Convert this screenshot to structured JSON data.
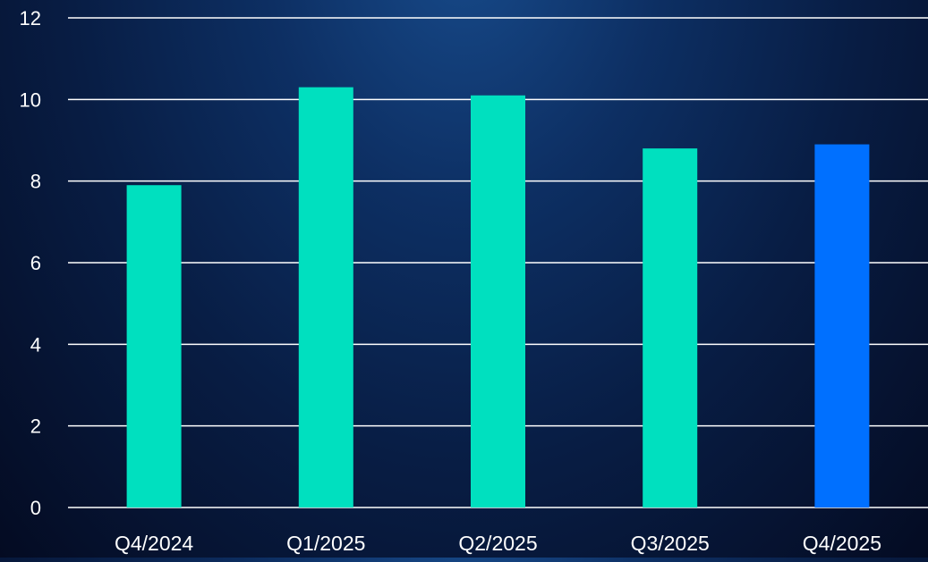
{
  "chart_data": {
    "type": "bar",
    "title": "",
    "xlabel": "",
    "ylabel": "",
    "categories": [
      "Q4/2024",
      "Q1/2025",
      "Q2/2025",
      "Q3/2025",
      "Q4/2025"
    ],
    "values": [
      7.9,
      10.3,
      10.1,
      8.8,
      8.9
    ],
    "ylim": [
      0,
      12
    ],
    "yticks": [
      "0",
      "2",
      "4",
      "6",
      "8",
      "10",
      "12"
    ],
    "grid": true,
    "colors": {
      "default": "#00e0bf",
      "highlight": "#0070ff",
      "gridline": "#ffffff",
      "text": "#ffffff"
    },
    "highlight_index": 4
  }
}
